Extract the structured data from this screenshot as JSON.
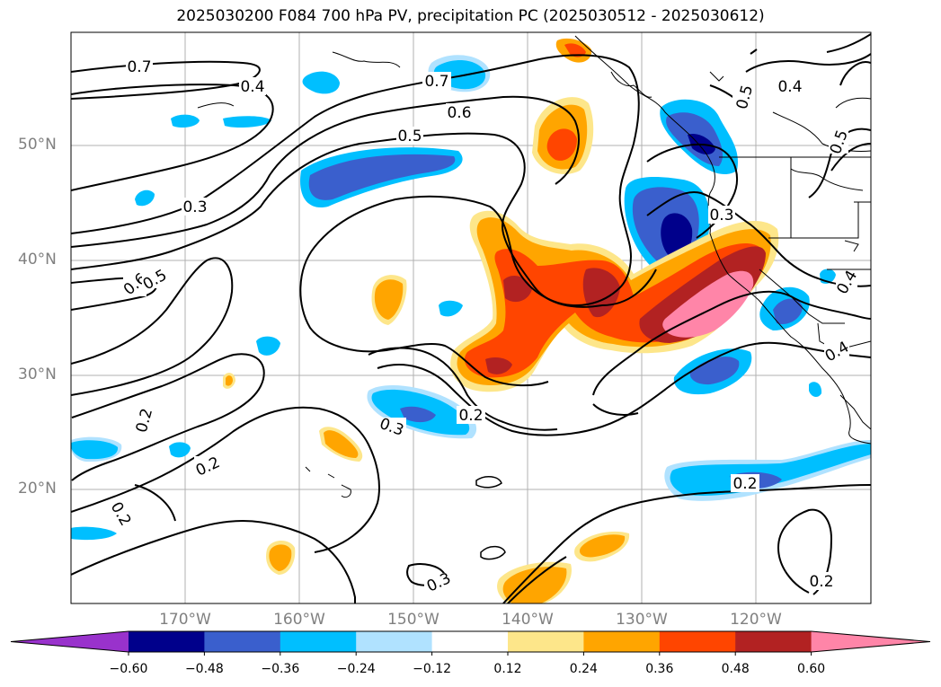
{
  "title": "2025030200 F084 700 hPa PV, precipitation PC (2025030512 - 2025030612)",
  "lat_labels": [
    "50°N",
    "40°N",
    "30°N",
    "20°N"
  ],
  "lon_labels": [
    "170°W",
    "160°W",
    "150°W",
    "140°W",
    "130°W",
    "120°W"
  ],
  "contour_labels": [
    "0.7",
    "0.4",
    "0.7",
    "0.6",
    "0.5",
    "0.5",
    "0.4",
    "0.5",
    "0.3",
    "0.3",
    "0.6",
    "0.5",
    "0.4",
    "0.4",
    "0.2",
    "0.2",
    "0.3",
    "0.2",
    "0.2",
    "0.2",
    "0.3",
    "0.2"
  ],
  "colorbar": {
    "ticks": [
      "−0.60",
      "−0.48",
      "−0.36",
      "−0.24",
      "−0.12",
      "0.12",
      "0.24",
      "0.36",
      "0.48",
      "0.60"
    ],
    "colors": [
      "#9932cc",
      "#00008b",
      "#3a5fcd",
      "#00bfff",
      "#b0e2ff",
      "#ffffff",
      "#fde68a",
      "#ffa500",
      "#ff4500",
      "#b22222",
      "#ff85a8"
    ]
  }
}
